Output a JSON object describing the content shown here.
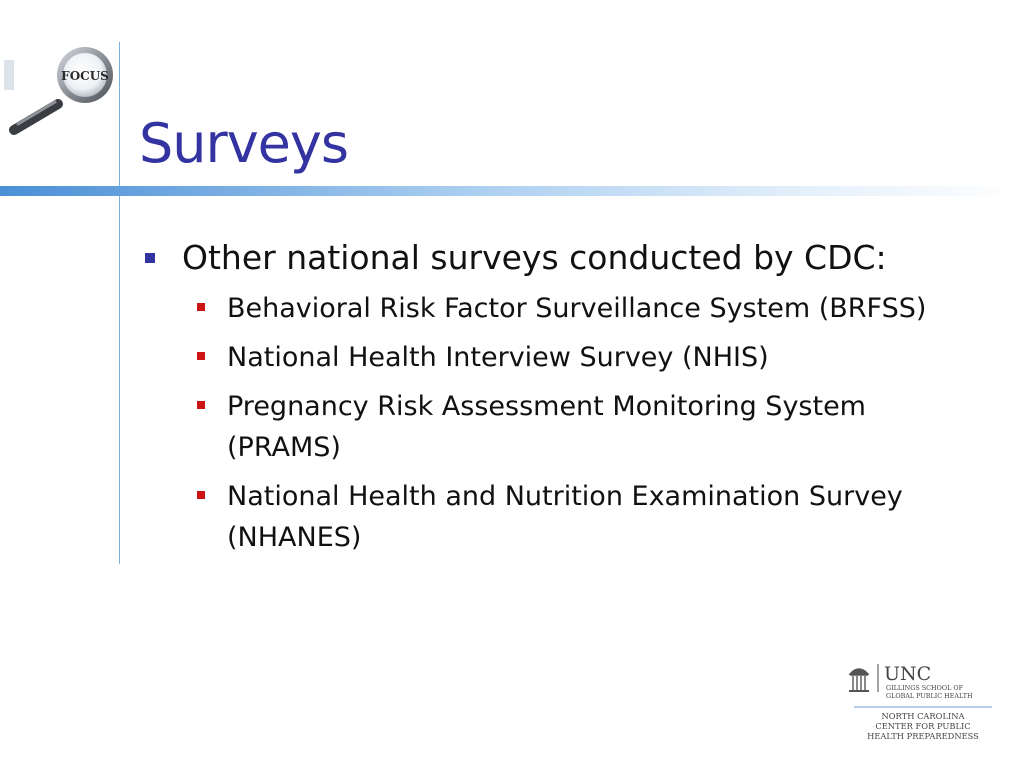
{
  "slide": {
    "title": "Surveys",
    "logo": {
      "text": "FOCUS",
      "icon": "magnifying-glass-icon"
    },
    "bullet": {
      "text": "Other national surveys conducted by CDC:",
      "subitems": [
        "Behavioral Risk Factor Surveillance System (BRFSS)",
        "National Health Interview Survey (NHIS)",
        "Pregnancy Risk Assessment Monitoring System (PRAMS)",
        "National Health and Nutrition Examination Survey (NHANES)"
      ]
    },
    "footer_logo": {
      "icon": "old-well-icon",
      "unc": "UNC",
      "school_line1": "GILLINGS SCHOOL OF",
      "school_line2": "GLOBAL PUBLIC HEALTH",
      "center_line1": "NORTH CAROLINA",
      "center_line2": "CENTER FOR PUBLIC",
      "center_line3": "HEALTH PREPAREDNESS"
    }
  },
  "colors": {
    "title": "#3333a1",
    "level1_bullet": "#3333a1",
    "level2_bullet": "#cc1414",
    "rule": "#4a8fd6"
  }
}
